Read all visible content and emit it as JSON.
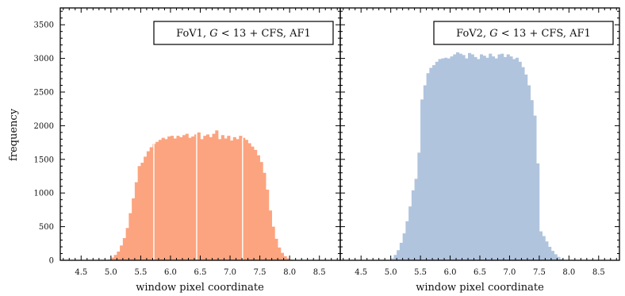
{
  "chart_data": [
    {
      "type": "bar",
      "panel": "left",
      "legend": "FoV1, G < 13 + CFS, AF1",
      "legend_parts": [
        "FoV1, ",
        "G",
        " < 13 + CFS, AF1"
      ],
      "color": "#fca47f",
      "xlabel": "window pixel coordinate",
      "ylabel": "frequency",
      "xlim": [
        4.15,
        8.85
      ],
      "ylim": [
        0,
        3750
      ],
      "xticks": [
        "4.5",
        "5.0",
        "5.5",
        "6.0",
        "6.5",
        "7.0",
        "7.5",
        "8.0",
        "8.5"
      ],
      "yticks": [
        "0",
        "500",
        "1000",
        "1500",
        "2000",
        "2500",
        "3000",
        "3500"
      ],
      "bin_width": 0.05,
      "bin_start": 4.95,
      "values": [
        10,
        40,
        80,
        130,
        220,
        330,
        480,
        700,
        920,
        1160,
        1400,
        1450,
        1540,
        1620,
        1680,
        1730,
        1760,
        1790,
        1820,
        1800,
        1840,
        1850,
        1810,
        1850,
        1830,
        1860,
        1880,
        1820,
        1840,
        1870,
        1900,
        1800,
        1850,
        1870,
        1830,
        1880,
        1930,
        1800,
        1860,
        1810,
        1850,
        1780,
        1830,
        1800,
        1850,
        1820,
        1790,
        1740,
        1690,
        1640,
        1560,
        1460,
        1300,
        1050,
        740,
        500,
        320,
        190,
        110,
        60,
        30,
        10
      ],
      "gap_lines_x": [
        5.72,
        6.44,
        7.21
      ]
    },
    {
      "type": "bar",
      "panel": "right",
      "legend": "FoV2, G < 13 + CFS, AF1",
      "legend_parts": [
        "FoV2, ",
        "G",
        " < 13 + CFS, AF1"
      ],
      "color": "#b0c4dd",
      "xlabel": "window pixel coordinate",
      "xlim": [
        4.15,
        8.85
      ],
      "ylim": [
        0,
        3750
      ],
      "xticks": [
        "4.5",
        "5.0",
        "5.5",
        "6.0",
        "6.5",
        "7.0",
        "7.5",
        "8.0",
        "8.5"
      ],
      "bin_width": 0.05,
      "bin_start": 5.0,
      "values": [
        30,
        80,
        150,
        260,
        400,
        580,
        800,
        1040,
        1210,
        1600,
        2390,
        2600,
        2780,
        2860,
        2900,
        2950,
        2990,
        3000,
        3010,
        3000,
        3030,
        3060,
        3090,
        3070,
        3050,
        3000,
        3080,
        3060,
        3020,
        2990,
        3060,
        3040,
        3010,
        3070,
        3030,
        3000,
        3060,
        3070,
        3020,
        3060,
        3030,
        2990,
        3010,
        2950,
        2870,
        2760,
        2600,
        2380,
        2150,
        1440,
        430,
        360,
        280,
        200,
        140,
        90,
        50,
        20
      ]
    }
  ]
}
